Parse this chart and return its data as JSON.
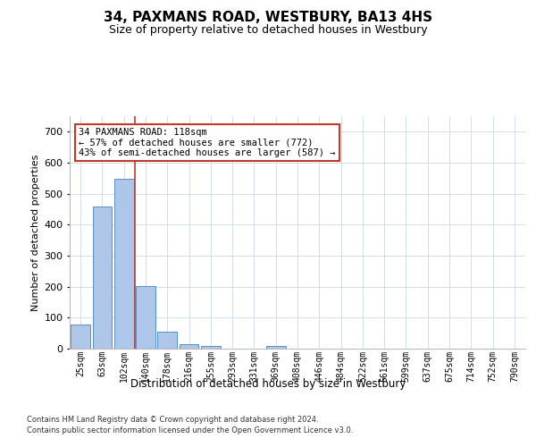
{
  "title": "34, PAXMANS ROAD, WESTBURY, BA13 4HS",
  "subtitle": "Size of property relative to detached houses in Westbury",
  "xlabel": "Distribution of detached houses by size in Westbury",
  "ylabel": "Number of detached properties",
  "categories": [
    "25sqm",
    "63sqm",
    "102sqm",
    "140sqm",
    "178sqm",
    "216sqm",
    "255sqm",
    "293sqm",
    "331sqm",
    "369sqm",
    "408sqm",
    "446sqm",
    "484sqm",
    "522sqm",
    "561sqm",
    "599sqm",
    "637sqm",
    "675sqm",
    "714sqm",
    "752sqm",
    "790sqm"
  ],
  "values": [
    78,
    460,
    548,
    203,
    55,
    14,
    8,
    0,
    0,
    10,
    0,
    0,
    0,
    0,
    0,
    0,
    0,
    0,
    0,
    0,
    0
  ],
  "bar_color": "#aec6e8",
  "bar_edge_color": "#5a8fc2",
  "vline_x_index": 2,
  "vline_color": "#c0392b",
  "annotation_line1": "34 PAXMANS ROAD: 118sqm",
  "annotation_line2": "← 57% of detached houses are smaller (772)",
  "annotation_line3": "43% of semi-detached houses are larger (587) →",
  "annotation_box_color": "#ffffff",
  "annotation_box_edge": "#c0392b",
  "ylim": [
    0,
    750
  ],
  "yticks": [
    0,
    100,
    200,
    300,
    400,
    500,
    600,
    700
  ],
  "footer1": "Contains HM Land Registry data © Crown copyright and database right 2024.",
  "footer2": "Contains public sector information licensed under the Open Government Licence v3.0.",
  "background_color": "#ffffff",
  "grid_color": "#d4e0ed",
  "title_fontsize": 11,
  "subtitle_fontsize": 9,
  "ylabel_fontsize": 8,
  "xlabel_fontsize": 8.5,
  "tick_fontsize": 7,
  "annotation_fontsize": 7.5,
  "footer_fontsize": 6
}
